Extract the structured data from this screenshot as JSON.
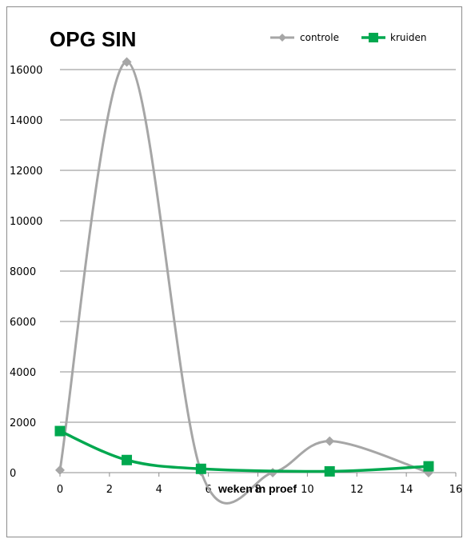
{
  "chart_data": {
    "type": "line",
    "title": "OPG SIN",
    "xlabel": "weken in proef",
    "ylabel": "",
    "xlim": [
      0,
      16
    ],
    "ylim": [
      0,
      16000
    ],
    "x_ticks": [
      0,
      2,
      4,
      6,
      8,
      10,
      12,
      14,
      16
    ],
    "y_ticks": [
      0,
      2000,
      4000,
      6000,
      8000,
      10000,
      12000,
      14000,
      16000
    ],
    "grid": "horizontal",
    "legend_position": "top-right",
    "smooth": true,
    "series": [
      {
        "name": "controle",
        "color": "#a6a6a6",
        "marker": "diamond",
        "x": [
          0,
          2.7,
          5.7,
          8.6,
          10.9,
          14.9
        ],
        "y": [
          100,
          16300,
          50,
          0,
          1250,
          0
        ]
      },
      {
        "name": "kruiden",
        "color": "#00a84f",
        "marker": "square",
        "x": [
          0,
          2.7,
          5.7,
          10.9,
          14.9
        ],
        "y": [
          1650,
          500,
          150,
          50,
          250
        ]
      }
    ]
  }
}
